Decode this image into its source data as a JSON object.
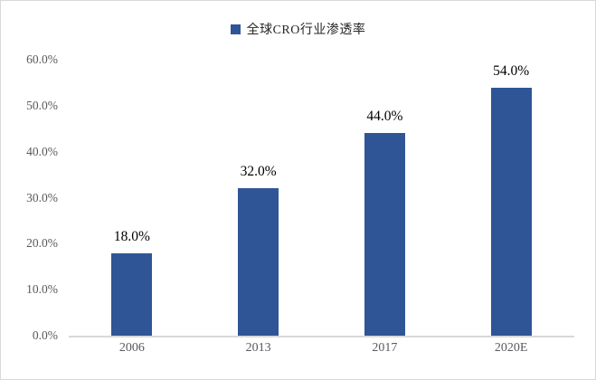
{
  "chart_data": {
    "type": "bar",
    "title": "",
    "legend": "全球CRO行业渗透率",
    "legend_position": "top-center",
    "categories": [
      "2006",
      "2013",
      "2017",
      "2020E"
    ],
    "values": [
      18.0,
      32.0,
      44.0,
      54.0
    ],
    "value_labels": [
      "18.0%",
      "32.0%",
      "44.0%",
      "54.0%"
    ],
    "xlabel": "",
    "ylabel": "",
    "ylim": [
      0,
      60
    ],
    "yticks": [
      0,
      10,
      20,
      30,
      40,
      50,
      60
    ],
    "ytick_labels": [
      "0.0%",
      "10.0%",
      "20.0%",
      "30.0%",
      "40.0%",
      "50.0%",
      "60.0%"
    ],
    "grid": "off",
    "colors": {
      "bar": "#2F5597",
      "legend_swatch": "#2F5597",
      "axis_line": "#D9D9D9",
      "border": "#D9D9D9",
      "background": "#FFFFFF",
      "value_label_text": "#000000",
      "tick_label_text": "#595959",
      "legend_text": "#262626"
    }
  }
}
